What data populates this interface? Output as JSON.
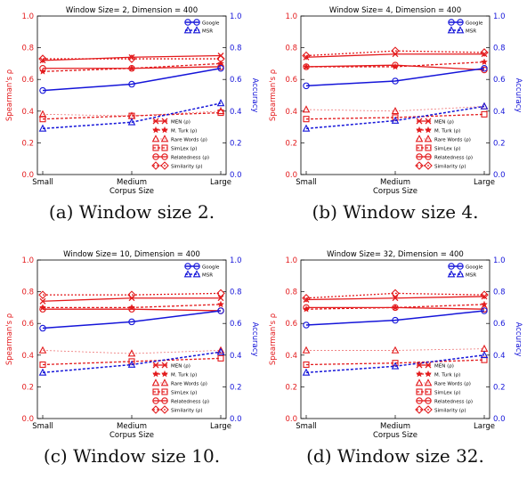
{
  "colors": {
    "left_axis": "#e31a1c",
    "right_axis": "#1515d9",
    "text": "#000000"
  },
  "common": {
    "xlabel": "Corpus Size",
    "ylabel_left": "Spearman's ρ",
    "ylabel_right": "Accuracy",
    "categories": [
      "Small",
      "Medium",
      "Large"
    ],
    "ylim": [
      0,
      1.0
    ],
    "yticks": [
      "0.0",
      "0.2",
      "0.4",
      "0.6",
      "0.8",
      "1.0"
    ],
    "legend_top": [
      "Google",
      "MSR"
    ],
    "legend_bottom": [
      "MEN (ρ)",
      "M. Turk (ρ)",
      "Rare Words (ρ)",
      "SimLex (ρ)",
      "Relatedness (ρ)",
      "Similarity (ρ)"
    ]
  },
  "chart_data": [
    {
      "type": "line",
      "title": "Window Size= 2, Dimension = 400",
      "caption": "(a) Window size 2.",
      "categories": [
        "Small",
        "Medium",
        "Large"
      ],
      "ylim": [
        0,
        1.0
      ],
      "series": [
        {
          "name": "MEN (ρ)",
          "axis": "left",
          "values": [
            0.72,
            0.74,
            0.75
          ]
        },
        {
          "name": "M. Turk (ρ)",
          "axis": "left",
          "values": [
            0.65,
            0.67,
            0.7
          ]
        },
        {
          "name": "Rare Words (ρ)",
          "axis": "left",
          "values": [
            0.38,
            0.37,
            0.4
          ]
        },
        {
          "name": "SimLex (ρ)",
          "axis": "left",
          "values": [
            0.35,
            0.37,
            0.39
          ]
        },
        {
          "name": "Relatedness (ρ)",
          "axis": "left",
          "values": [
            0.67,
            0.67,
            0.68
          ]
        },
        {
          "name": "Similarity (ρ)",
          "axis": "left",
          "values": [
            0.73,
            0.73,
            0.73
          ]
        },
        {
          "name": "Google",
          "axis": "right",
          "values": [
            0.53,
            0.57,
            0.67
          ]
        },
        {
          "name": "MSR",
          "axis": "right",
          "values": [
            0.29,
            0.33,
            0.45
          ]
        }
      ]
    },
    {
      "type": "line",
      "title": "Window Size= 4, Dimension = 400",
      "caption": "(b) Window size 4.",
      "categories": [
        "Small",
        "Medium",
        "Large"
      ],
      "ylim": [
        0,
        1.0
      ],
      "series": [
        {
          "name": "MEN (ρ)",
          "axis": "left",
          "values": [
            0.74,
            0.76,
            0.76
          ]
        },
        {
          "name": "M. Turk (ρ)",
          "axis": "left",
          "values": [
            0.68,
            0.68,
            0.71
          ]
        },
        {
          "name": "Rare Words (ρ)",
          "axis": "left",
          "values": [
            0.41,
            0.4,
            0.43
          ]
        },
        {
          "name": "SimLex (ρ)",
          "axis": "left",
          "values": [
            0.35,
            0.36,
            0.38
          ]
        },
        {
          "name": "Relatedness (ρ)",
          "axis": "left",
          "values": [
            0.68,
            0.69,
            0.66
          ]
        },
        {
          "name": "Similarity (ρ)",
          "axis": "left",
          "values": [
            0.75,
            0.78,
            0.77
          ]
        },
        {
          "name": "Google",
          "axis": "right",
          "values": [
            0.56,
            0.59,
            0.67
          ]
        },
        {
          "name": "MSR",
          "axis": "right",
          "values": [
            0.29,
            0.34,
            0.43
          ]
        }
      ]
    },
    {
      "type": "line",
      "title": "Window Size= 10, Dimension = 400",
      "caption": "(c) Window size 10.",
      "categories": [
        "Small",
        "Medium",
        "Large"
      ],
      "ylim": [
        0,
        1.0
      ],
      "series": [
        {
          "name": "MEN (ρ)",
          "axis": "left",
          "values": [
            0.74,
            0.76,
            0.76
          ]
        },
        {
          "name": "M. Turk (ρ)",
          "axis": "left",
          "values": [
            0.7,
            0.7,
            0.72
          ]
        },
        {
          "name": "Rare Words (ρ)",
          "axis": "left",
          "values": [
            0.43,
            0.41,
            0.43
          ]
        },
        {
          "name": "SimLex (ρ)",
          "axis": "left",
          "values": [
            0.34,
            0.36,
            0.38
          ]
        },
        {
          "name": "Relatedness (ρ)",
          "axis": "left",
          "values": [
            0.69,
            0.69,
            0.68
          ]
        },
        {
          "name": "Similarity (ρ)",
          "axis": "left",
          "values": [
            0.78,
            0.78,
            0.79
          ]
        },
        {
          "name": "Google",
          "axis": "right",
          "values": [
            0.57,
            0.61,
            0.68
          ]
        },
        {
          "name": "MSR",
          "axis": "right",
          "values": [
            0.29,
            0.34,
            0.42
          ]
        }
      ]
    },
    {
      "type": "line",
      "title": "Window Size= 32, Dimension = 400",
      "caption": "(d) Window size 32.",
      "categories": [
        "Small",
        "Medium",
        "Large"
      ],
      "ylim": [
        0,
        1.0
      ],
      "series": [
        {
          "name": "MEN (ρ)",
          "axis": "left",
          "values": [
            0.75,
            0.76,
            0.77
          ]
        },
        {
          "name": "M. Turk (ρ)",
          "axis": "left",
          "values": [
            0.69,
            0.7,
            0.72
          ]
        },
        {
          "name": "Rare Words (ρ)",
          "axis": "left",
          "values": [
            0.43,
            0.43,
            0.44
          ]
        },
        {
          "name": "SimLex (ρ)",
          "axis": "left",
          "values": [
            0.34,
            0.35,
            0.37
          ]
        },
        {
          "name": "Relatedness (ρ)",
          "axis": "left",
          "values": [
            0.7,
            0.7,
            0.69
          ]
        },
        {
          "name": "Similarity (ρ)",
          "axis": "left",
          "values": [
            0.76,
            0.79,
            0.78
          ]
        },
        {
          "name": "Google",
          "axis": "right",
          "values": [
            0.59,
            0.62,
            0.68
          ]
        },
        {
          "name": "MSR",
          "axis": "right",
          "values": [
            0.29,
            0.33,
            0.4
          ]
        }
      ]
    }
  ]
}
